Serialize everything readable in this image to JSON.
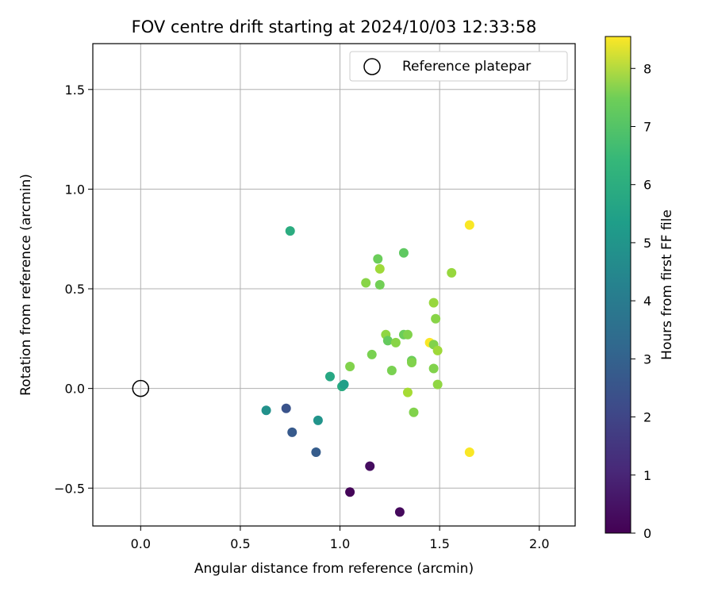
{
  "chart_data": {
    "type": "scatter",
    "title": "FOV centre drift starting at 2024/10/03 12:33:58",
    "xlabel": "Angular distance from reference (arcmin)",
    "ylabel": "Rotation from reference (arcmin)",
    "xlim": [
      -0.24,
      2.18
    ],
    "ylim": [
      -0.69,
      1.73
    ],
    "xticks": [
      0.0,
      0.5,
      1.0,
      1.5,
      2.0
    ],
    "xtick_labels": [
      "0.0",
      "0.5",
      "1.0",
      "1.5",
      "2.0"
    ],
    "yticks": [
      -0.5,
      0.0,
      0.5,
      1.0,
      1.5
    ],
    "ytick_labels": [
      "−0.5",
      "0.0",
      "0.5",
      "1.0",
      "1.5"
    ],
    "grid": true,
    "legend": {
      "position": "top-right",
      "entries": [
        "Reference platepar"
      ]
    },
    "reference_point": {
      "x": 0.0,
      "y": 0.0
    },
    "colorbar": {
      "label": "Hours from first FF file",
      "colormap": "viridis",
      "range": [
        0,
        8.55
      ],
      "ticks": [
        0,
        1,
        2,
        3,
        4,
        5,
        6,
        7,
        8
      ],
      "tick_labels": [
        "0",
        "1",
        "2",
        "3",
        "4",
        "5",
        "6",
        "7",
        "8"
      ]
    },
    "points": [
      {
        "x": 1.05,
        "y": -0.52,
        "hours": 0.1
      },
      {
        "x": 1.15,
        "y": -0.39,
        "hours": 0.3
      },
      {
        "x": 1.3,
        "y": -0.62,
        "hours": 0.2
      },
      {
        "x": 0.73,
        "y": -0.1,
        "hours": 2.2
      },
      {
        "x": 0.76,
        "y": -0.22,
        "hours": 2.4
      },
      {
        "x": 0.88,
        "y": -0.32,
        "hours": 2.5
      },
      {
        "x": 0.63,
        "y": -0.11,
        "hours": 4.3
      },
      {
        "x": 0.89,
        "y": -0.16,
        "hours": 4.4
      },
      {
        "x": 0.75,
        "y": 0.79,
        "hours": 5.3
      },
      {
        "x": 0.95,
        "y": 0.06,
        "hours": 5.1
      },
      {
        "x": 1.01,
        "y": 0.01,
        "hours": 5.2
      },
      {
        "x": 1.02,
        "y": 0.02,
        "hours": 4.8
      },
      {
        "x": 1.05,
        "y": 0.11,
        "hours": 6.9
      },
      {
        "x": 1.13,
        "y": 0.53,
        "hours": 7.0
      },
      {
        "x": 1.16,
        "y": 0.17,
        "hours": 6.8
      },
      {
        "x": 1.19,
        "y": 0.65,
        "hours": 6.6
      },
      {
        "x": 1.2,
        "y": 0.6,
        "hours": 7.3
      },
      {
        "x": 1.2,
        "y": 0.52,
        "hours": 6.7
      },
      {
        "x": 1.23,
        "y": 0.27,
        "hours": 7.1
      },
      {
        "x": 1.24,
        "y": 0.24,
        "hours": 6.5
      },
      {
        "x": 1.26,
        "y": 0.09,
        "hours": 6.8
      },
      {
        "x": 1.28,
        "y": 0.23,
        "hours": 7.0
      },
      {
        "x": 1.32,
        "y": 0.68,
        "hours": 6.4
      },
      {
        "x": 1.32,
        "y": 0.27,
        "hours": 6.6
      },
      {
        "x": 1.34,
        "y": 0.27,
        "hours": 6.9
      },
      {
        "x": 1.34,
        "y": -0.02,
        "hours": 7.4
      },
      {
        "x": 1.36,
        "y": 0.14,
        "hours": 6.6
      },
      {
        "x": 1.36,
        "y": 0.13,
        "hours": 6.9
      },
      {
        "x": 1.37,
        "y": -0.12,
        "hours": 6.9
      },
      {
        "x": 1.45,
        "y": 0.23,
        "hours": 8.5
      },
      {
        "x": 1.47,
        "y": 0.43,
        "hours": 7.2
      },
      {
        "x": 1.47,
        "y": 0.22,
        "hours": 6.9
      },
      {
        "x": 1.47,
        "y": 0.1,
        "hours": 6.9
      },
      {
        "x": 1.48,
        "y": 0.35,
        "hours": 7.0
      },
      {
        "x": 1.49,
        "y": 0.19,
        "hours": 7.3
      },
      {
        "x": 1.49,
        "y": 0.02,
        "hours": 7.1
      },
      {
        "x": 1.56,
        "y": 0.58,
        "hours": 7.2
      },
      {
        "x": 1.65,
        "y": 0.82,
        "hours": 8.5
      },
      {
        "x": 1.65,
        "y": -0.32,
        "hours": 8.5
      }
    ]
  }
}
